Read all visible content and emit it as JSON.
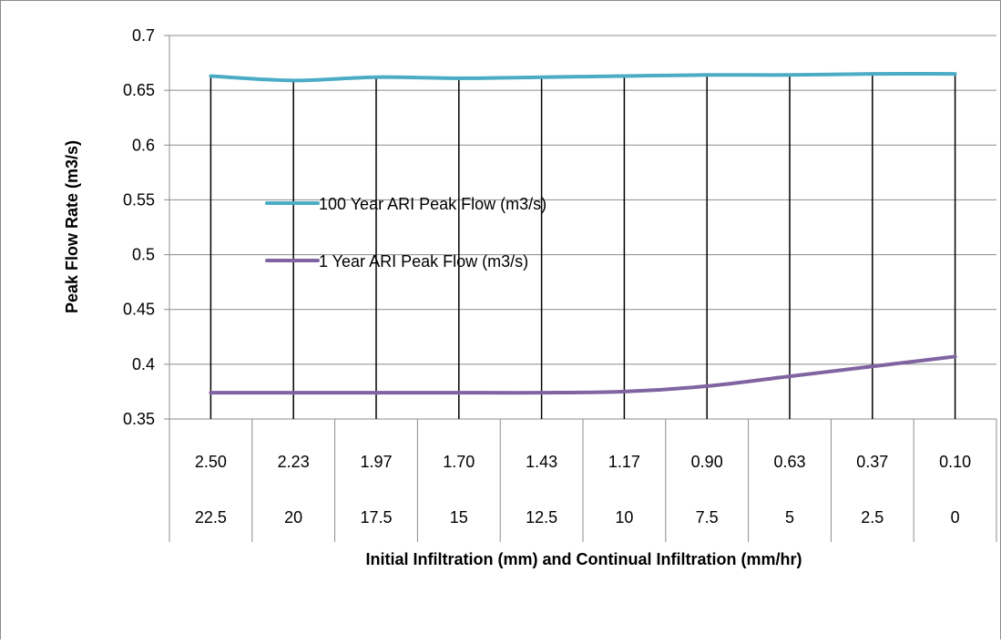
{
  "chart_data": {
    "type": "line",
    "xlabel": "Initial Infiltration (mm) and Continual Infiltration (mm/hr)",
    "ylabel": "Peak Flow Rate (m3/s)",
    "ylim": [
      0.35,
      0.7
    ],
    "yticks": [
      "0.35",
      "0.4",
      "0.45",
      "0.5",
      "0.55",
      "0.6",
      "0.65",
      "0.7"
    ],
    "grid": true,
    "drop_lines": true,
    "legend_position": "left-middle",
    "categories_row1": [
      "2.50",
      "2.23",
      "1.97",
      "1.70",
      "1.43",
      "1.17",
      "0.90",
      "0.63",
      "0.37",
      "0.10"
    ],
    "categories_row2": [
      "22.5",
      "20",
      "17.5",
      "15",
      "12.5",
      "10",
      "7.5",
      "5",
      "2.5",
      "0"
    ],
    "series": [
      {
        "name": "100 Year ARI Peak Flow (m3/s)",
        "color": "#4bacc6",
        "values": [
          0.663,
          0.659,
          0.662,
          0.661,
          0.662,
          0.663,
          0.664,
          0.664,
          0.665,
          0.665
        ]
      },
      {
        "name": "1 Year ARI Peak Flow (m3/s)",
        "color": "#8064a2",
        "values": [
          0.374,
          0.374,
          0.374,
          0.374,
          0.374,
          0.375,
          0.38,
          0.389,
          0.398,
          0.407
        ]
      }
    ]
  }
}
